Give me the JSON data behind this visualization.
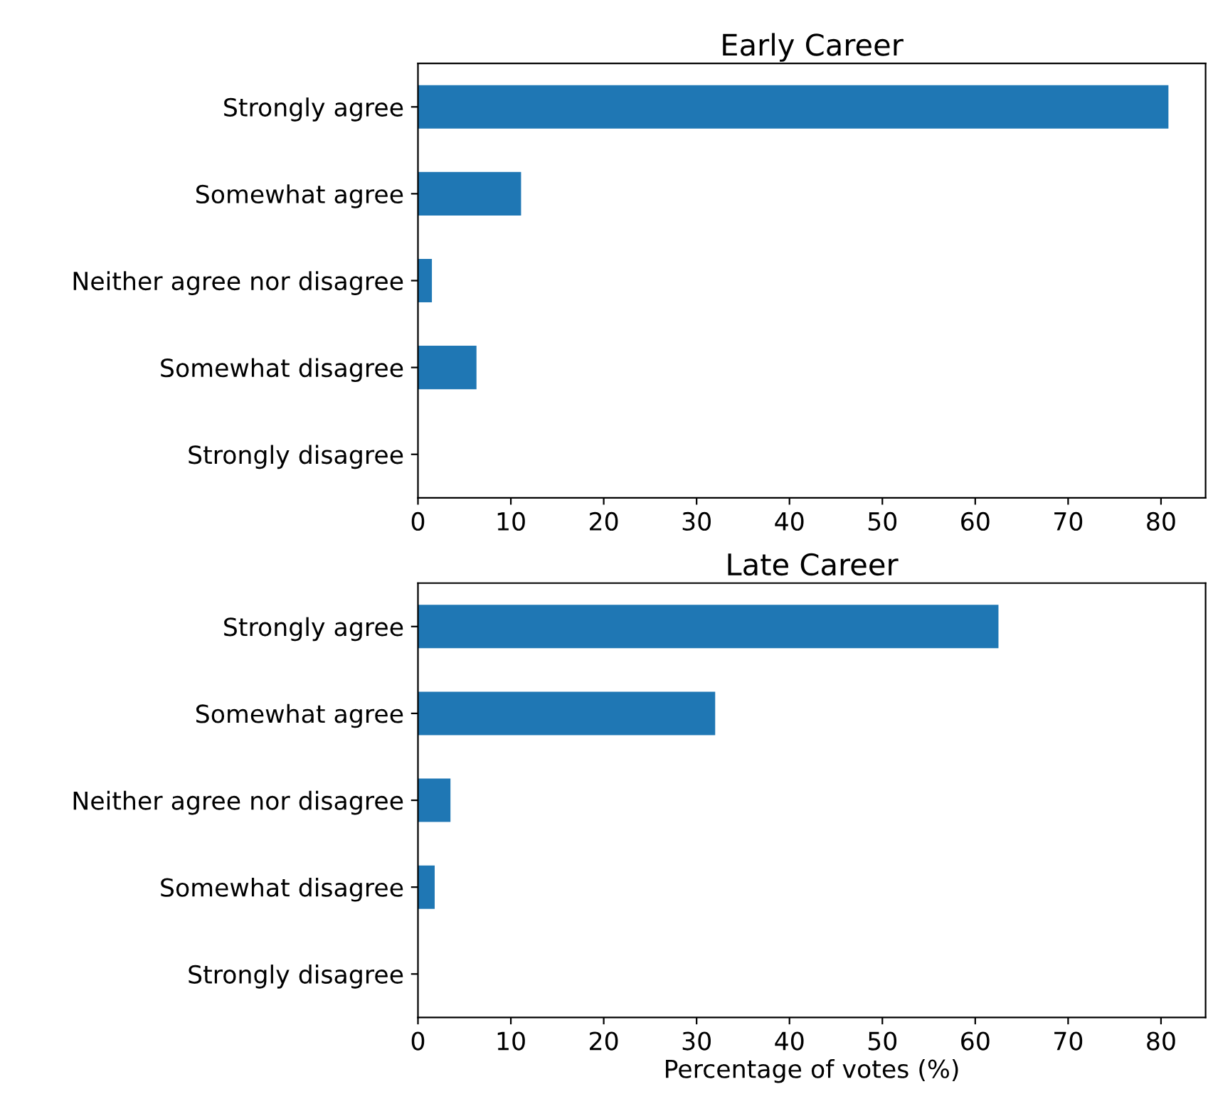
{
  "chart_data": [
    {
      "type": "bar",
      "orientation": "horizontal",
      "title": "Early Career",
      "categories": [
        "Strongly agree",
        "Somewhat agree",
        "Neither agree nor disagree",
        "Somewhat disagree",
        "Strongly disagree"
      ],
      "series": [
        {
          "color": "#1f77b4",
          "values": [
            80.8,
            11.1,
            1.5,
            6.3,
            0
          ]
        }
      ],
      "xlim": [
        0,
        84.8
      ],
      "xticks": [
        0,
        10,
        20,
        30,
        40,
        50,
        60,
        70,
        80
      ],
      "grid": false
    },
    {
      "type": "bar",
      "orientation": "horizontal",
      "title": "Late Career",
      "xlabel": "Percentage of votes (%)",
      "categories": [
        "Strongly agree",
        "Somewhat agree",
        "Neither agree nor disagree",
        "Somewhat disagree",
        "Strongly disagree"
      ],
      "series": [
        {
          "color": "#1f77b4",
          "values": [
            62.5,
            32.0,
            3.5,
            1.8,
            0
          ]
        }
      ],
      "xlim": [
        0,
        84.8
      ],
      "xticks": [
        0,
        10,
        20,
        30,
        40,
        50,
        60,
        70,
        80
      ],
      "grid": false
    }
  ]
}
